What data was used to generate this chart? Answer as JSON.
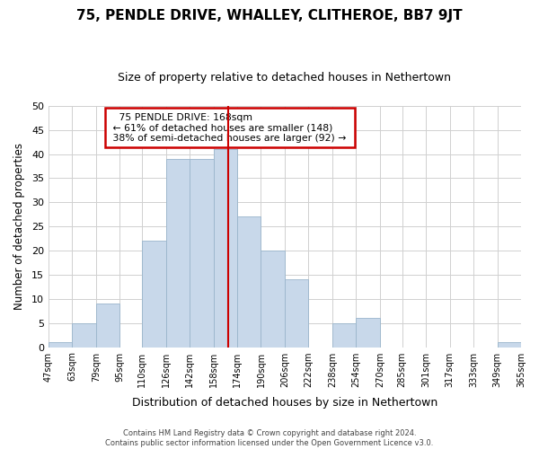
{
  "title": "75, PENDLE DRIVE, WHALLEY, CLITHEROE, BB7 9JT",
  "subtitle": "Size of property relative to detached houses in Nethertown",
  "xlabel": "Distribution of detached houses by size in Nethertown",
  "ylabel": "Number of detached properties",
  "bar_color": "#c8d8ea",
  "bar_edge_color": "#9ab5cc",
  "grid_color": "#d0d0d0",
  "background_color": "#ffffff",
  "bin_edges": [
    47,
    63,
    79,
    95,
    110,
    126,
    142,
    158,
    174,
    190,
    206,
    222,
    238,
    254,
    270,
    285,
    301,
    317,
    333,
    349,
    365
  ],
  "bin_labels": [
    "47sqm",
    "63sqm",
    "79sqm",
    "95sqm",
    "110sqm",
    "126sqm",
    "142sqm",
    "158sqm",
    "174sqm",
    "190sqm",
    "206sqm",
    "222sqm",
    "238sqm",
    "254sqm",
    "270sqm",
    "285sqm",
    "301sqm",
    "317sqm",
    "333sqm",
    "349sqm",
    "365sqm"
  ],
  "counts": [
    1,
    5,
    9,
    0,
    22,
    39,
    39,
    41,
    27,
    20,
    14,
    0,
    5,
    6,
    0,
    0,
    0,
    0,
    0,
    1
  ],
  "vline_x": 168,
  "vline_color": "#cc0000",
  "annotation_title": "75 PENDLE DRIVE: 168sqm",
  "annotation_line1": "← 61% of detached houses are smaller (148)",
  "annotation_line2": "38% of semi-detached houses are larger (92) →",
  "annotation_box_facecolor": "#ffffff",
  "annotation_box_edgecolor": "#cc0000",
  "footer_line1": "Contains HM Land Registry data © Crown copyright and database right 2024.",
  "footer_line2": "Contains public sector information licensed under the Open Government Licence v3.0.",
  "ylim": [
    0,
    50
  ],
  "yticks": [
    0,
    5,
    10,
    15,
    20,
    25,
    30,
    35,
    40,
    45,
    50
  ],
  "title_fontsize": 11,
  "subtitle_fontsize": 9
}
